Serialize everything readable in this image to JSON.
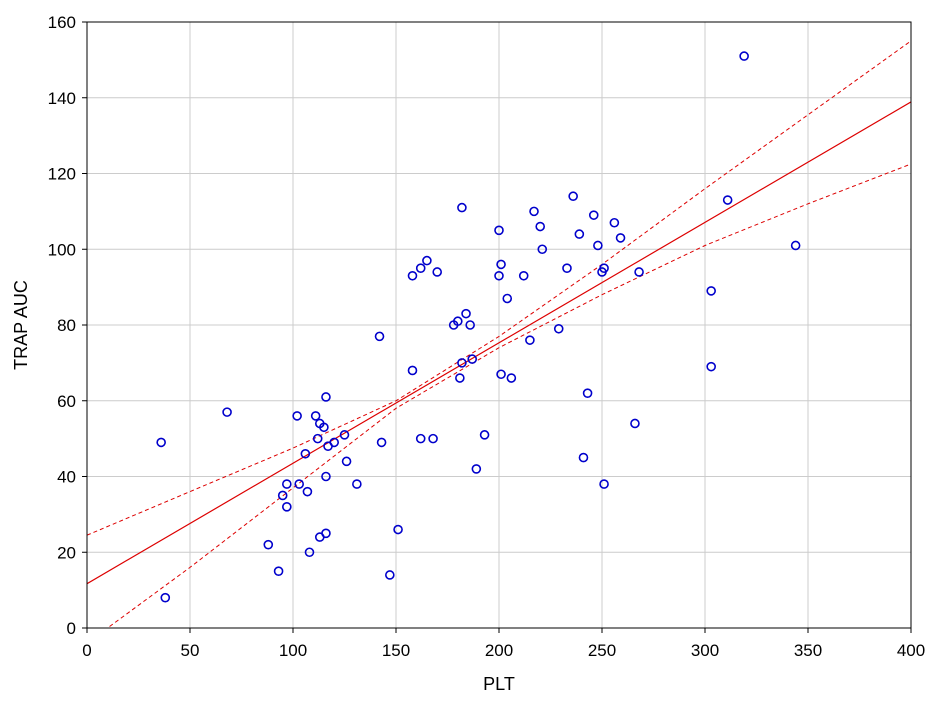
{
  "chart_data": {
    "type": "scatter",
    "title": "",
    "xlabel": "PLT",
    "ylabel": "TRAP AUC",
    "xlim": [
      0,
      400
    ],
    "ylim": [
      0,
      160
    ],
    "xticks": [
      0,
      50,
      100,
      150,
      200,
      250,
      300,
      350,
      400
    ],
    "yticks": [
      0,
      20,
      40,
      60,
      80,
      100,
      120,
      140,
      160
    ],
    "grid": true,
    "legend": "none",
    "colors": {
      "points": "#0000cc",
      "fit_line": "#dd0000",
      "confidence_band": "#dd0000",
      "grid": "#cccccc"
    },
    "series": [
      {
        "points": [
          [
            36,
            49
          ],
          [
            38,
            8
          ],
          [
            68,
            57
          ],
          [
            88,
            22
          ],
          [
            93,
            15
          ],
          [
            95,
            35
          ],
          [
            97,
            32
          ],
          [
            97,
            38
          ],
          [
            102,
            56
          ],
          [
            103,
            38
          ],
          [
            106,
            46
          ],
          [
            107,
            36
          ],
          [
            108,
            20
          ],
          [
            111,
            56
          ],
          [
            112,
            50
          ],
          [
            113,
            24
          ],
          [
            113,
            54
          ],
          [
            115,
            53
          ],
          [
            116,
            25
          ],
          [
            116,
            40
          ],
          [
            116,
            61
          ],
          [
            117,
            48
          ],
          [
            120,
            49
          ],
          [
            125,
            51
          ],
          [
            126,
            44
          ],
          [
            131,
            38
          ],
          [
            142,
            77
          ],
          [
            143,
            49
          ],
          [
            147,
            14
          ],
          [
            151,
            26
          ],
          [
            158,
            68
          ],
          [
            158,
            93
          ],
          [
            162,
            95
          ],
          [
            162,
            50
          ],
          [
            165,
            97
          ],
          [
            168,
            50
          ],
          [
            170,
            94
          ],
          [
            178,
            80
          ],
          [
            180,
            81
          ],
          [
            181,
            66
          ],
          [
            182,
            70
          ],
          [
            182,
            111
          ],
          [
            184,
            83
          ],
          [
            186,
            80
          ],
          [
            187,
            71
          ],
          [
            189,
            42
          ],
          [
            193,
            51
          ],
          [
            200,
            105
          ],
          [
            200,
            93
          ],
          [
            201,
            96
          ],
          [
            201,
            67
          ],
          [
            204,
            87
          ],
          [
            206,
            66
          ],
          [
            212,
            93
          ],
          [
            215,
            76
          ],
          [
            217,
            110
          ],
          [
            220,
            106
          ],
          [
            221,
            100
          ],
          [
            229,
            79
          ],
          [
            233,
            95
          ],
          [
            236,
            114
          ],
          [
            239,
            104
          ],
          [
            241,
            45
          ],
          [
            243,
            62
          ],
          [
            246,
            109
          ],
          [
            248,
            101
          ],
          [
            250,
            94
          ],
          [
            251,
            95
          ],
          [
            251,
            38
          ],
          [
            256,
            107
          ],
          [
            259,
            103
          ],
          [
            266,
            54
          ],
          [
            268,
            94
          ],
          [
            303,
            89
          ],
          [
            303,
            69
          ],
          [
            311,
            113
          ],
          [
            319,
            151
          ],
          [
            344,
            101
          ]
        ]
      }
    ],
    "fit_line": {
      "type": "linear",
      "intercept": 11.7,
      "slope": 0.318
    },
    "confidence_band": {
      "lower": [
        [
          0,
          -4
        ],
        [
          50,
          16
        ],
        [
          100,
          37
        ],
        [
          150,
          58
        ],
        [
          200,
          74
        ],
        [
          250,
          88
        ],
        [
          300,
          101
        ],
        [
          350,
          112
        ],
        [
          400,
          122.5
        ]
      ],
      "upper": [
        [
          0,
          24.5
        ],
        [
          50,
          36
        ],
        [
          100,
          47.5
        ],
        [
          150,
          60
        ],
        [
          200,
          77
        ],
        [
          250,
          96
        ],
        [
          300,
          116
        ],
        [
          350,
          135.5
        ],
        [
          400,
          155
        ]
      ]
    }
  }
}
